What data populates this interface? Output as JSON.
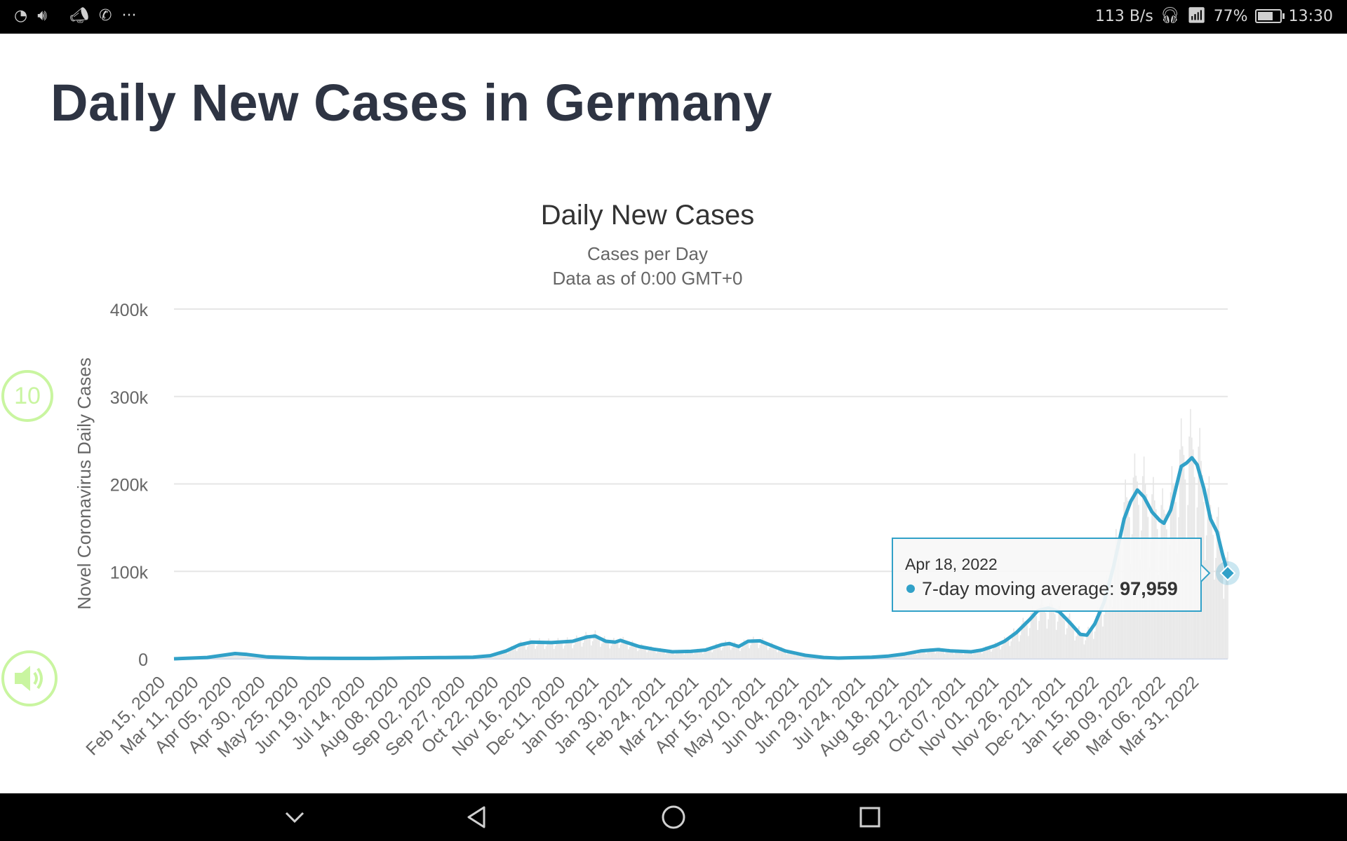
{
  "status_bar": {
    "network_speed": "113 B/s",
    "battery_percent": "77%",
    "battery_level": 0.77,
    "time": "13:30",
    "icons": [
      "speedometer-icon",
      "volume-icon",
      "megaphone-icon",
      "viber-icon",
      "more-icon",
      "headset-icon",
      "wifi-icon",
      "battery-icon"
    ]
  },
  "page": {
    "title": "Daily New Cases in Germany"
  },
  "overlay": {
    "speed_label": "10"
  },
  "chart_data": {
    "type": "line",
    "title": "Daily New Cases",
    "subtitle_lines": [
      "Cases per Day",
      "Data as of 0:00 GMT+0"
    ],
    "ylabel": "Novel Coronavirus Daily Cases",
    "xlabel": "",
    "ylim": [
      0,
      400000
    ],
    "y_ticks": [
      {
        "value": 0,
        "label": "0"
      },
      {
        "value": 100000,
        "label": "100k"
      },
      {
        "value": 200000,
        "label": "200k"
      },
      {
        "value": 300000,
        "label": "300k"
      },
      {
        "value": 400000,
        "label": "400k"
      }
    ],
    "x_start": "2020-02-15",
    "x_end": "2022-04-18",
    "x_ticks": [
      "Feb 15, 2020",
      "Mar 11, 2020",
      "Apr 05, 2020",
      "Apr 30, 2020",
      "May 25, 2020",
      "Jun 19, 2020",
      "Jul 14, 2020",
      "Aug 08, 2020",
      "Sep 02, 2020",
      "Sep 27, 2020",
      "Oct 22, 2020",
      "Nov 16, 2020",
      "Dec 11, 2020",
      "Jan 05, 2021",
      "Jan 30, 2021",
      "Feb 24, 2021",
      "Mar 21, 2021",
      "Apr 15, 2021",
      "May 10, 2021",
      "Jun 04, 2021",
      "Jun 29, 2021",
      "Jul 24, 2021",
      "Aug 18, 2021",
      "Sep 12, 2021",
      "Oct 07, 2021",
      "Nov 01, 2021",
      "Nov 26, 2021",
      "Dec 21, 2021",
      "Jan 15, 2022",
      "Feb 09, 2022",
      "Mar 06, 2022",
      "Mar 31, 2022"
    ],
    "grid": true,
    "legend": "none",
    "series": [
      {
        "name": "7-day moving average",
        "color": "#31a1c8",
        "points": [
          [
            "2020-02-15",
            0
          ],
          [
            "2020-03-11",
            1500
          ],
          [
            "2020-03-25",
            4500
          ],
          [
            "2020-04-01",
            6000
          ],
          [
            "2020-04-10",
            5000
          ],
          [
            "2020-04-25",
            2200
          ],
          [
            "2020-05-25",
            700
          ],
          [
            "2020-06-19",
            500
          ],
          [
            "2020-07-14",
            500
          ],
          [
            "2020-08-08",
            1000
          ],
          [
            "2020-09-02",
            1400
          ],
          [
            "2020-09-27",
            1800
          ],
          [
            "2020-10-10",
            3500
          ],
          [
            "2020-10-22",
            9000
          ],
          [
            "2020-11-01",
            16000
          ],
          [
            "2020-11-10",
            19000
          ],
          [
            "2020-11-25",
            18500
          ],
          [
            "2020-12-11",
            20000
          ],
          [
            "2020-12-22",
            25000
          ],
          [
            "2020-12-28",
            26000
          ],
          [
            "2021-01-05",
            20000
          ],
          [
            "2021-01-12",
            19000
          ],
          [
            "2021-01-16",
            21000
          ],
          [
            "2021-01-24",
            17000
          ],
          [
            "2021-01-30",
            14000
          ],
          [
            "2021-02-10",
            11000
          ],
          [
            "2021-02-24",
            8000
          ],
          [
            "2021-03-10",
            8500
          ],
          [
            "2021-03-21",
            10000
          ],
          [
            "2021-04-02",
            16000
          ],
          [
            "2021-04-08",
            17500
          ],
          [
            "2021-04-15",
            14000
          ],
          [
            "2021-04-22",
            20000
          ],
          [
            "2021-05-01",
            20500
          ],
          [
            "2021-05-10",
            15000
          ],
          [
            "2021-05-20",
            9000
          ],
          [
            "2021-06-04",
            4000
          ],
          [
            "2021-06-18",
            1500
          ],
          [
            "2021-06-29",
            800
          ],
          [
            "2021-07-24",
            1800
          ],
          [
            "2021-08-05",
            3000
          ],
          [
            "2021-08-18",
            5500
          ],
          [
            "2021-08-30",
            9000
          ],
          [
            "2021-09-12",
            10500
          ],
          [
            "2021-09-22",
            9000
          ],
          [
            "2021-10-07",
            8000
          ],
          [
            "2021-10-15",
            10000
          ],
          [
            "2021-10-25",
            15000
          ],
          [
            "2021-11-01",
            20000
          ],
          [
            "2021-11-10",
            30000
          ],
          [
            "2021-11-20",
            45000
          ],
          [
            "2021-11-26",
            55000
          ],
          [
            "2021-12-04",
            58000
          ],
          [
            "2021-12-12",
            54000
          ],
          [
            "2021-12-21",
            40000
          ],
          [
            "2021-12-28",
            28000
          ],
          [
            "2022-01-02",
            27000
          ],
          [
            "2022-01-08",
            40000
          ],
          [
            "2022-01-15",
            65000
          ],
          [
            "2022-01-22",
            105000
          ],
          [
            "2022-01-30",
            160000
          ],
          [
            "2022-02-04",
            180000
          ],
          [
            "2022-02-09",
            193000
          ],
          [
            "2022-02-14",
            185000
          ],
          [
            "2022-02-20",
            168000
          ],
          [
            "2022-02-26",
            158000
          ],
          [
            "2022-03-01",
            155000
          ],
          [
            "2022-03-06",
            170000
          ],
          [
            "2022-03-10",
            195000
          ],
          [
            "2022-03-14",
            220000
          ],
          [
            "2022-03-18",
            224000
          ],
          [
            "2022-03-22",
            230000
          ],
          [
            "2022-03-26",
            222000
          ],
          [
            "2022-03-31",
            195000
          ],
          [
            "2022-04-05",
            160000
          ],
          [
            "2022-04-10",
            145000
          ],
          [
            "2022-04-14",
            120000
          ],
          [
            "2022-04-18",
            97959
          ]
        ]
      }
    ],
    "daily_bars": {
      "name": "Daily Cases",
      "color": "#e6e6e6",
      "note": "approximate daily values following the average with weekly variation"
    },
    "tooltip": {
      "date": "Apr 18, 2022",
      "series": "7-day moving average",
      "label": "7-day moving average: ",
      "value_text": "97,959",
      "value": 97959
    }
  }
}
